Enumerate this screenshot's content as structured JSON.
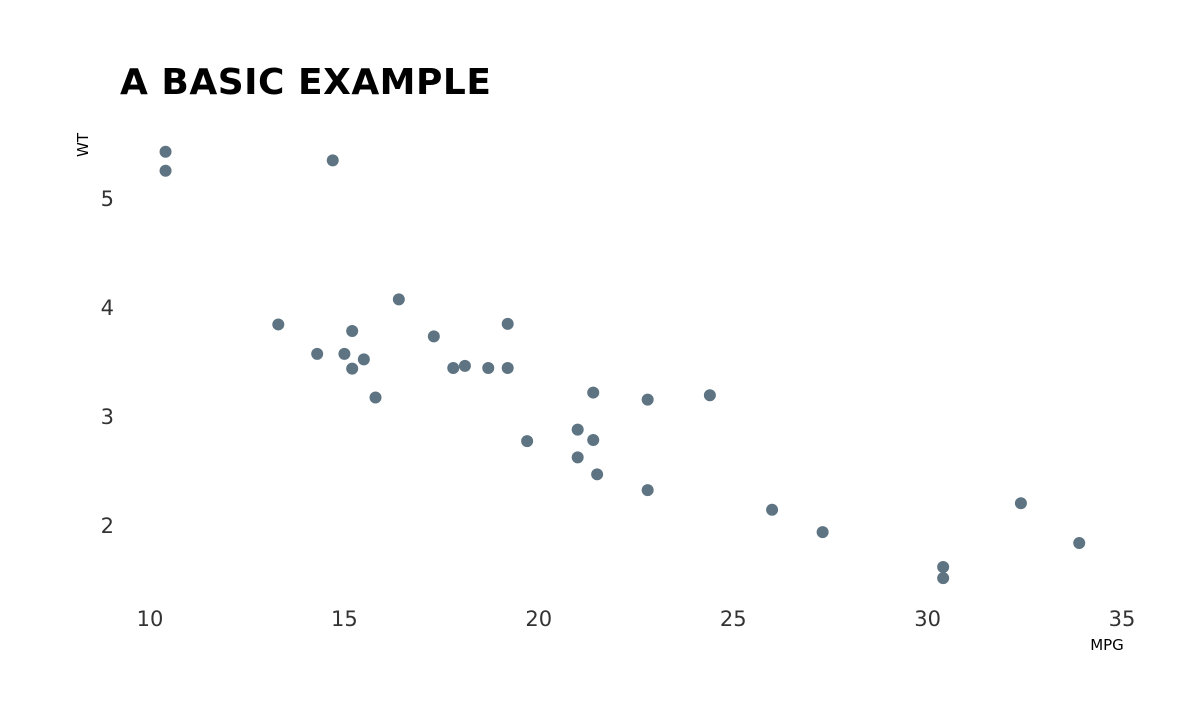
{
  "chart_data": {
    "type": "scatter",
    "title": "A BASIC EXAMPLE",
    "xlabel": "MPG",
    "ylabel": "WT",
    "xlim": [
      9,
      35.5
    ],
    "ylim": [
      1.4,
      5.6
    ],
    "xticks": [
      10,
      15,
      20,
      25,
      30,
      35
    ],
    "yticks": [
      2,
      3,
      4,
      5
    ],
    "grid": false,
    "point_color": "#5e7482",
    "points": [
      {
        "x": 21.0,
        "y": 2.62
      },
      {
        "x": 21.0,
        "y": 2.875
      },
      {
        "x": 22.8,
        "y": 2.32
      },
      {
        "x": 21.4,
        "y": 3.215
      },
      {
        "x": 18.7,
        "y": 3.44
      },
      {
        "x": 18.1,
        "y": 3.46
      },
      {
        "x": 14.3,
        "y": 3.57
      },
      {
        "x": 24.4,
        "y": 3.19
      },
      {
        "x": 22.8,
        "y": 3.15
      },
      {
        "x": 19.2,
        "y": 3.44
      },
      {
        "x": 17.8,
        "y": 3.44
      },
      {
        "x": 16.4,
        "y": 4.07
      },
      {
        "x": 17.3,
        "y": 3.73
      },
      {
        "x": 15.2,
        "y": 3.78
      },
      {
        "x": 10.4,
        "y": 5.25
      },
      {
        "x": 10.4,
        "y": 5.424
      },
      {
        "x": 14.7,
        "y": 5.345
      },
      {
        "x": 32.4,
        "y": 2.2
      },
      {
        "x": 30.4,
        "y": 1.615
      },
      {
        "x": 33.9,
        "y": 1.835
      },
      {
        "x": 21.5,
        "y": 2.465
      },
      {
        "x": 15.5,
        "y": 3.52
      },
      {
        "x": 15.2,
        "y": 3.435
      },
      {
        "x": 13.3,
        "y": 3.84
      },
      {
        "x": 19.2,
        "y": 3.845
      },
      {
        "x": 27.3,
        "y": 1.935
      },
      {
        "x": 26.0,
        "y": 2.14
      },
      {
        "x": 30.4,
        "y": 1.513
      },
      {
        "x": 15.8,
        "y": 3.17
      },
      {
        "x": 19.7,
        "y": 2.77
      },
      {
        "x": 15.0,
        "y": 3.57
      },
      {
        "x": 21.4,
        "y": 2.78
      }
    ]
  }
}
